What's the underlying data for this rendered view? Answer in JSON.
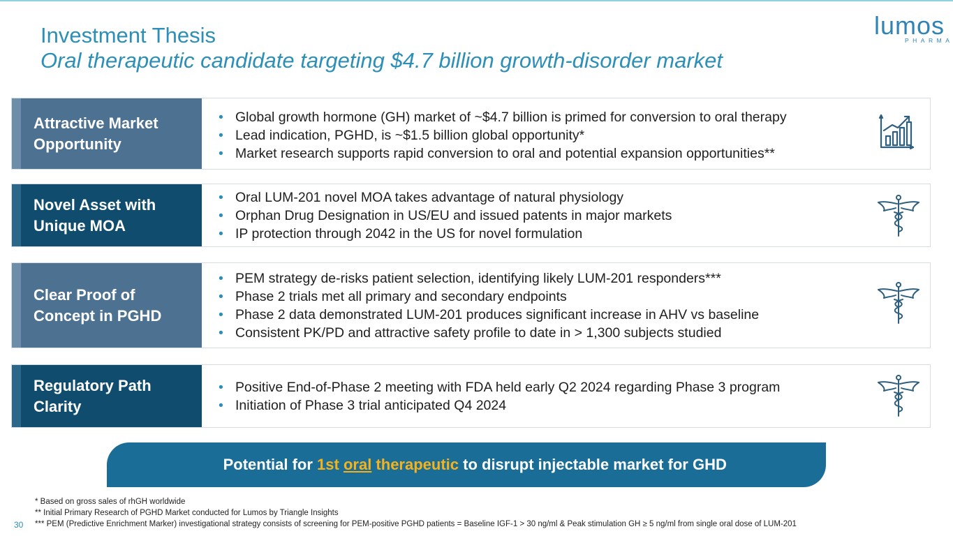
{
  "header": {
    "title": "Investment Thesis",
    "subtitle": "Oral therapeutic candidate targeting $4.7 billion growth-disorder market"
  },
  "logo": {
    "word": "lumos",
    "sub": "PHARMA"
  },
  "rows": [
    {
      "label": "Attractive Market\nOpportunity",
      "bullets": [
        "Global growth hormone (GH) market of ~$4.7 billion is primed for conversion to oral therapy",
        "Lead indication, PGHD, is ~$1.5 billion global opportunity*",
        "Market research supports rapid conversion to oral and potential expansion opportunities**"
      ],
      "icon": "growth-chart-icon"
    },
    {
      "label": "Novel Asset with\nUnique MOA",
      "bullets": [
        "Oral LUM-201 novel MOA takes advantage of natural physiology",
        "Orphan Drug Designation in US/EU and issued patents in major markets",
        "IP protection through 2042 in the US for novel formulation"
      ],
      "icon": "caduceus-icon"
    },
    {
      "label": "Clear Proof of\nConcept in PGHD",
      "bullets": [
        "PEM strategy de-risks patient selection, identifying likely LUM-201 responders***",
        "Phase 2 trials met all primary and secondary endpoints",
        "Phase 2 data demonstrated LUM-201 produces significant increase in AHV vs baseline",
        "Consistent PK/PD and attractive safety profile to date in > 1,300 subjects studied"
      ],
      "icon": "caduceus-icon"
    },
    {
      "label": "Regulatory Path\nClarity",
      "bullets": [
        "Positive End-of-Phase 2 meeting with FDA held early Q2 2024 regarding Phase 3 program",
        "Initiation of Phase 3 trial anticipated Q4 2024"
      ],
      "icon": "caduceus-icon"
    }
  ],
  "bullet_char": "•",
  "banner": {
    "pre": "Potential for ",
    "hl1": "1st ",
    "hl2": "oral",
    "hl3": " therapeutic",
    "post": " to disrupt injectable market for GHD"
  },
  "footnotes": [
    "*  Based on gross sales of rhGH worldwide",
    "**  Initial Primary Research of PGHD Market conducted for Lumos by Triangle Insights",
    "*** PEM (Predictive Enrichment Marker) investigational strategy consists of screening for PEM-positive PGHD patients = Baseline IGF-1 > 30 ng/ml & Peak stimulation GH ≥ 5 ng/ml from single oral dose of LUM-201"
  ],
  "page_number": "30",
  "colors": {
    "title": "#2c8fb8",
    "label_light": "#4d7190",
    "label_dark": "#0f4c6e",
    "banner": "#1a6d97",
    "highlight": "#f5b21b",
    "bullet": "#2c8fb8"
  }
}
